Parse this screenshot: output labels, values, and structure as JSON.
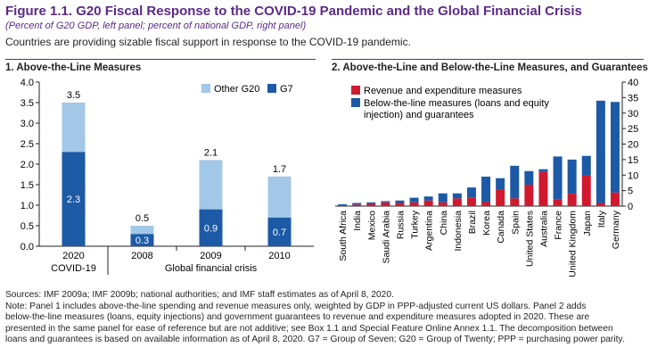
{
  "figure": {
    "title": "Figure 1.1. G20 Fiscal Response to the COVID-19 Pandemic and the Global Financial Crisis",
    "subtitle": "(Percent of G20 GDP, left panel; percent of national GDP, right panel)",
    "lead": "Countries are providing sizable fiscal support in response to the COVID-19 pandemic."
  },
  "colors": {
    "title": "#5b2a86",
    "g7": "#1c5aa6",
    "other": "#a3c7e6",
    "red": "#d0192f"
  },
  "chart_data": [
    {
      "type": "bar",
      "title": "1. Above-the-Line Measures",
      "stacked": true,
      "categories": [
        "2020",
        "2008",
        "2009",
        "2010"
      ],
      "group_labels": [
        "COVID-19",
        "Global financial crisis"
      ],
      "series": [
        {
          "name": "G7",
          "values": [
            2.3,
            0.3,
            0.9,
            0.7
          ]
        },
        {
          "name": "Other G20",
          "values": [
            1.2,
            0.2,
            1.2,
            1.0
          ]
        }
      ],
      "totals": [
        3.5,
        0.5,
        2.1,
        1.7
      ],
      "ylim": [
        0,
        4
      ],
      "yticks": [
        "0.0",
        "0.5",
        "1.0",
        "1.5",
        "2.0",
        "2.5",
        "3.0",
        "3.5",
        "4.0"
      ],
      "grid": false,
      "legend": "top-right"
    },
    {
      "type": "bar",
      "title": "2. Above-the-Line and Below-the-Line Measures, and Guarantees",
      "categories": [
        "South Africa",
        "India",
        "Mexico",
        "Saudi Arabia",
        "Russia",
        "Turkey",
        "Argentina",
        "China",
        "Indonesia",
        "Brazil",
        "Korea",
        "Canada",
        "Spain",
        "United States",
        "Australia",
        "France",
        "United Kingdom",
        "Japan",
        "Italy",
        "Germany"
      ],
      "series": [
        {
          "name": "Revenue and expenditure measures",
          "values": [
            0.3,
            0.5,
            0.7,
            1.2,
            1.0,
            1.2,
            1.8,
            1.2,
            2.5,
            2.8,
            1.3,
            5.3,
            2.5,
            6.9,
            11.0,
            2.2,
            4.0,
            9.8,
            1.0,
            4.4
          ]
        },
        {
          "name": "Below-the-line measures (loans and equity injection) and guarantees",
          "values": [
            0.3,
            0.5,
            0.5,
            0.4,
            0.8,
            1.5,
            1.3,
            2.9,
            1.6,
            3.2,
            8.2,
            3.7,
            10.5,
            4.4,
            0.9,
            13.8,
            11.0,
            6.4,
            33.0,
            29.2
          ]
        }
      ],
      "ylim": [
        0,
        40
      ],
      "yticks": [
        "0",
        "5",
        "10",
        "15",
        "20",
        "25",
        "30",
        "35",
        "40"
      ],
      "y_axis_side": "right",
      "grid": false,
      "legend": "top-left"
    }
  ],
  "notes": [
    "Sources: IMF 2009a; IMF 2009b; national authorities; and IMF staff estimates as of April 8, 2020.",
    "Note: Panel 1 includes above-the-line spending and revenue measures only, weighted by GDP in PPP-adjusted current US dollars. Panel 2 adds",
    "below-the-line measures (loans, equity injections) and government guarantees to revenue and expenditure measures adopted in 2020. These are",
    "presented in the same panel for ease of reference but are not additive; see Box 1.1 and Special Feature Online Annex 1.1. The decomposition between",
    "loans and guarantees is based on available information as of April 8, 2020. G7 = Group of Seven; G20 = Group of Twenty; PPP = purchasing power parity."
  ]
}
